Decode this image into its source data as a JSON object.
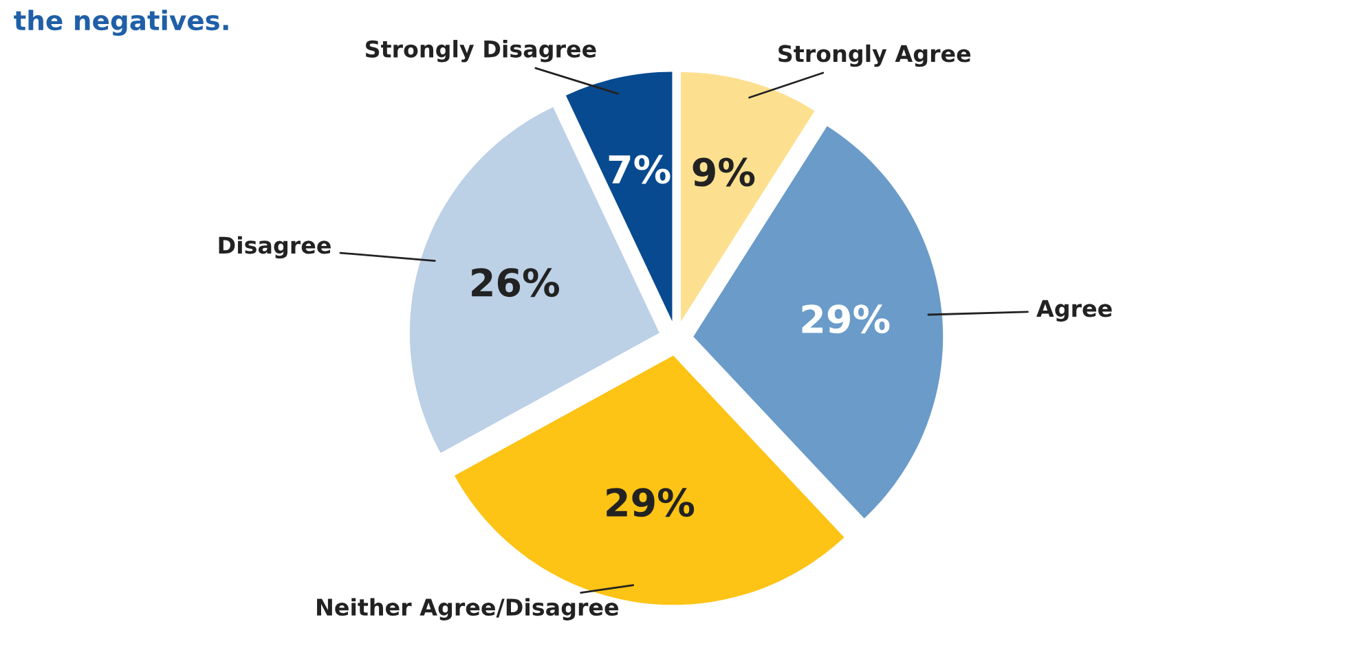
{
  "chart_data": {
    "type": "pie",
    "title": "the negatives.",
    "categories": [
      "Strongly Agree",
      "Agree",
      "Neither Agree/Disagree",
      "Disagree",
      "Strongly Disagree"
    ],
    "values": [
      9,
      29,
      29,
      26,
      7
    ],
    "colors": [
      "#fde08f",
      "#6a9bc9",
      "#fdc315",
      "#bcd0e6",
      "#084a8f"
    ],
    "value_labels": [
      "9%",
      "29%",
      "29%",
      "26%",
      "7%"
    ]
  }
}
